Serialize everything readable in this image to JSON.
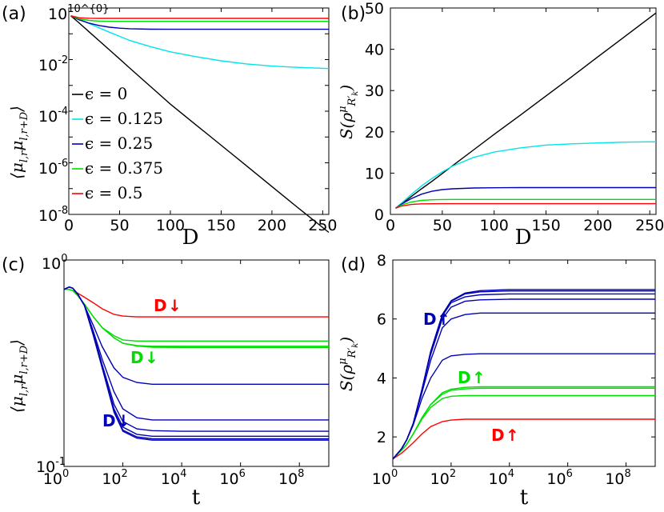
{
  "chart_data": [
    {
      "panel": "(a)",
      "type": "line",
      "xlabel": "D",
      "ylabel": "⟨μ^x_{l,r} μ^x_{l,r+D}⟩",
      "yscale": "log",
      "xlim": [
        0,
        256
      ],
      "ylim": [
        1e-08,
        1
      ],
      "xticks": [
        "0",
        "50",
        "100",
        "150",
        "200",
        "250"
      ],
      "yticks": [
        "10^{-8}",
        "10^{-6}",
        "10^{-4}",
        "10^{-2}",
        "10^{0}"
      ],
      "legend": [
        "ϵ = 0",
        "ϵ = 0.125",
        "ϵ = 0.25",
        "ϵ = 0.375",
        "ϵ = 0.5"
      ],
      "x": [
        2,
        10,
        20,
        30,
        40,
        50,
        60,
        80,
        100,
        125,
        150,
        175,
        200,
        225,
        256
      ],
      "series": [
        {
          "name": "ϵ = 0",
          "color": "#000000",
          "values": [
            0.5,
            0.267,
            0.119,
            0.053,
            0.0237,
            0.0106,
            0.0047,
            0.00094,
            0.000188,
            3e-05,
            4.8e-06,
            7.6e-07,
            1.2e-07,
            1.9e-08,
            2e-09
          ]
        },
        {
          "name": "ϵ = 0.125",
          "color": "#00e5e5",
          "values": [
            0.5,
            0.37,
            0.25,
            0.17,
            0.115,
            0.08,
            0.055,
            0.032,
            0.02,
            0.013,
            0.009,
            0.0068,
            0.0056,
            0.005,
            0.0045
          ]
        },
        {
          "name": "ϵ = 0.25",
          "color": "#0000b4",
          "values": [
            0.5,
            0.35,
            0.26,
            0.21,
            0.18,
            0.165,
            0.157,
            0.151,
            0.15,
            0.15,
            0.15,
            0.15,
            0.15,
            0.15,
            0.15
          ]
        },
        {
          "name": "ϵ = 0.375",
          "color": "#00dd00",
          "values": [
            0.5,
            0.38,
            0.33,
            0.31,
            0.305,
            0.303,
            0.303,
            0.303,
            0.303,
            0.303,
            0.303,
            0.303,
            0.303,
            0.303,
            0.303
          ]
        },
        {
          "name": "ϵ = 0.5",
          "color": "#ff0000",
          "values": [
            0.5,
            0.42,
            0.4,
            0.395,
            0.395,
            0.395,
            0.395,
            0.395,
            0.395,
            0.395,
            0.395,
            0.395,
            0.395,
            0.395,
            0.395
          ]
        }
      ]
    },
    {
      "panel": "(b)",
      "type": "line",
      "xlabel": "D",
      "ylabel": "S(ρ^μ_{R'_k})",
      "xlim": [
        0,
        256
      ],
      "ylim": [
        0,
        50
      ],
      "xticks": [
        "0",
        "50",
        "100",
        "150",
        "200",
        "250"
      ],
      "yticks": [
        "0",
        "10",
        "20",
        "30",
        "40",
        "50"
      ],
      "x": [
        5,
        10,
        20,
        30,
        40,
        50,
        60,
        80,
        100,
        125,
        150,
        175,
        200,
        225,
        256
      ],
      "series": [
        {
          "name": "ϵ = 0",
          "color": "#000000",
          "values": [
            1.5,
            2.4,
            4.3,
            6.2,
            8.0,
            9.9,
            11.8,
            15.6,
            19.4,
            24.0,
            28.7,
            33.4,
            38.2,
            42.9,
            48.8
          ]
        },
        {
          "name": "ϵ = 0.125",
          "color": "#00e5e5",
          "values": [
            1.5,
            2.6,
            4.8,
            6.9,
            8.7,
            10.3,
            11.7,
            13.8,
            15.1,
            16.1,
            16.8,
            17.1,
            17.3,
            17.5,
            17.6
          ]
        },
        {
          "name": "ϵ = 0.25",
          "color": "#0000b4",
          "values": [
            1.5,
            2.4,
            3.8,
            4.9,
            5.6,
            6.0,
            6.2,
            6.4,
            6.45,
            6.5,
            6.5,
            6.5,
            6.5,
            6.5,
            6.5
          ]
        },
        {
          "name": "ϵ = 0.375",
          "color": "#00dd00",
          "values": [
            1.5,
            2.2,
            3.0,
            3.4,
            3.55,
            3.6,
            3.62,
            3.63,
            3.63,
            3.63,
            3.63,
            3.63,
            3.63,
            3.63,
            3.63
          ]
        },
        {
          "name": "ϵ = 0.5",
          "color": "#ff0000",
          "values": [
            1.5,
            2.0,
            2.4,
            2.55,
            2.58,
            2.6,
            2.6,
            2.6,
            2.6,
            2.6,
            2.6,
            2.6,
            2.6,
            2.6,
            2.6
          ]
        }
      ]
    },
    {
      "panel": "(c)",
      "type": "line",
      "xlabel": "t",
      "ylabel": "⟨μ^x_{l,r} μ^x_{l,r+D}⟩",
      "xscale": "log",
      "yscale": "log",
      "xlim": [
        1,
        1000000000.0
      ],
      "ylim": [
        0.1,
        1
      ],
      "xticks": [
        "10^0",
        "10^2",
        "10^4",
        "10^6",
        "10^8"
      ],
      "yticks": [
        "10^{-1}",
        "10^{0}"
      ],
      "annotations": [
        "D",
        "D",
        "D"
      ],
      "x": [
        1,
        1.5,
        2,
        3,
        5,
        10,
        20,
        50,
        100,
        300,
        1000,
        10000.0,
        1000000.0,
        1000000000.0
      ],
      "series": [
        {
          "color": "#ff0000",
          "values": [
            0.72,
            0.72,
            0.71,
            0.69,
            0.66,
            0.62,
            0.58,
            0.545,
            0.535,
            0.53,
            0.53,
            0.53,
            0.53,
            0.53
          ]
        },
        {
          "color": "#00dd00",
          "values": [
            0.72,
            0.72,
            0.71,
            0.67,
            0.61,
            0.53,
            0.47,
            0.43,
            0.41,
            0.405,
            0.405,
            0.405,
            0.405,
            0.405
          ]
        },
        {
          "color": "#00dd00",
          "values": [
            0.72,
            0.72,
            0.71,
            0.67,
            0.61,
            0.53,
            0.47,
            0.42,
            0.395,
            0.385,
            0.382,
            0.382,
            0.382,
            0.382
          ]
        },
        {
          "color": "#00dd00",
          "values": [
            0.72,
            0.72,
            0.71,
            0.67,
            0.61,
            0.53,
            0.47,
            0.42,
            0.395,
            0.383,
            0.378,
            0.377,
            0.377,
            0.377
          ]
        },
        {
          "color": "#0000b4",
          "values": [
            0.72,
            0.74,
            0.73,
            0.68,
            0.6,
            0.48,
            0.38,
            0.3,
            0.27,
            0.255,
            0.25,
            0.25,
            0.25,
            0.25
          ]
        },
        {
          "color": "#0000b4",
          "values": [
            0.72,
            0.74,
            0.73,
            0.68,
            0.6,
            0.45,
            0.33,
            0.23,
            0.19,
            0.172,
            0.168,
            0.168,
            0.168,
            0.168
          ]
        },
        {
          "color": "#0000b4",
          "values": [
            0.72,
            0.74,
            0.73,
            0.68,
            0.6,
            0.44,
            0.31,
            0.2,
            0.165,
            0.152,
            0.149,
            0.148,
            0.148,
            0.148
          ]
        },
        {
          "color": "#0000b4",
          "values": [
            0.72,
            0.74,
            0.73,
            0.68,
            0.6,
            0.43,
            0.3,
            0.19,
            0.155,
            0.143,
            0.14,
            0.14,
            0.14,
            0.14
          ]
        },
        {
          "color": "#0000b4",
          "values": [
            0.72,
            0.74,
            0.73,
            0.68,
            0.6,
            0.43,
            0.3,
            0.185,
            0.15,
            0.139,
            0.136,
            0.136,
            0.136,
            0.136
          ]
        },
        {
          "color": "#0000b4",
          "values": [
            0.72,
            0.74,
            0.73,
            0.68,
            0.6,
            0.43,
            0.3,
            0.183,
            0.148,
            0.137,
            0.134,
            0.134,
            0.134,
            0.134
          ]
        }
      ]
    },
    {
      "panel": "(d)",
      "type": "line",
      "xlabel": "t",
      "ylabel": "S(ρ^μ_{R'_k})",
      "xscale": "log",
      "xlim": [
        1,
        1000000000.0
      ],
      "ylim": [
        1,
        8
      ],
      "xticks": [
        "10^0",
        "10^2",
        "10^4",
        "10^6",
        "10^8"
      ],
      "yticks": [
        "2",
        "4",
        "6",
        "8"
      ],
      "annotations": [
        "D",
        "D",
        "D"
      ],
      "x": [
        1,
        2,
        3,
        5,
        10,
        20,
        50,
        100,
        300,
        1000,
        10000.0,
        1000000.0,
        1000000000.0
      ],
      "series": [
        {
          "color": "#ff0000",
          "values": [
            1.25,
            1.45,
            1.6,
            1.8,
            2.1,
            2.35,
            2.52,
            2.57,
            2.6,
            2.6,
            2.6,
            2.6,
            2.6
          ]
        },
        {
          "color": "#00dd00",
          "values": [
            1.25,
            1.55,
            1.75,
            2.1,
            2.6,
            3.0,
            3.3,
            3.38,
            3.4,
            3.4,
            3.4,
            3.4,
            3.4
          ]
        },
        {
          "color": "#00dd00",
          "values": [
            1.25,
            1.55,
            1.75,
            2.1,
            2.65,
            3.1,
            3.45,
            3.58,
            3.63,
            3.65,
            3.65,
            3.65,
            3.65
          ]
        },
        {
          "color": "#00dd00",
          "values": [
            1.25,
            1.55,
            1.75,
            2.1,
            2.65,
            3.1,
            3.5,
            3.62,
            3.68,
            3.7,
            3.7,
            3.7,
            3.7
          ]
        },
        {
          "color": "#0000b4",
          "values": [
            1.25,
            1.6,
            1.9,
            2.4,
            3.3,
            4.0,
            4.6,
            4.75,
            4.8,
            4.82,
            4.82,
            4.82,
            4.82
          ]
        },
        {
          "color": "#0000b4",
          "values": [
            1.25,
            1.6,
            1.9,
            2.45,
            3.5,
            4.6,
            5.7,
            6.0,
            6.15,
            6.2,
            6.2,
            6.2,
            6.2
          ]
        },
        {
          "color": "#0000b4",
          "values": [
            1.25,
            1.6,
            1.9,
            2.45,
            3.6,
            4.8,
            6.0,
            6.4,
            6.6,
            6.65,
            6.67,
            6.67,
            6.67
          ]
        },
        {
          "color": "#0000b4",
          "values": [
            1.25,
            1.6,
            1.9,
            2.45,
            3.6,
            4.9,
            6.1,
            6.55,
            6.75,
            6.82,
            6.85,
            6.85,
            6.85
          ]
        },
        {
          "color": "#0000b4",
          "values": [
            1.25,
            1.6,
            1.9,
            2.45,
            3.6,
            4.9,
            6.15,
            6.6,
            6.85,
            6.92,
            6.95,
            6.95,
            6.95
          ]
        },
        {
          "color": "#0000b4",
          "values": [
            1.25,
            1.6,
            1.9,
            2.45,
            3.6,
            4.9,
            6.15,
            6.62,
            6.88,
            6.96,
            7.0,
            7.0,
            7.0
          ]
        }
      ]
    }
  ]
}
